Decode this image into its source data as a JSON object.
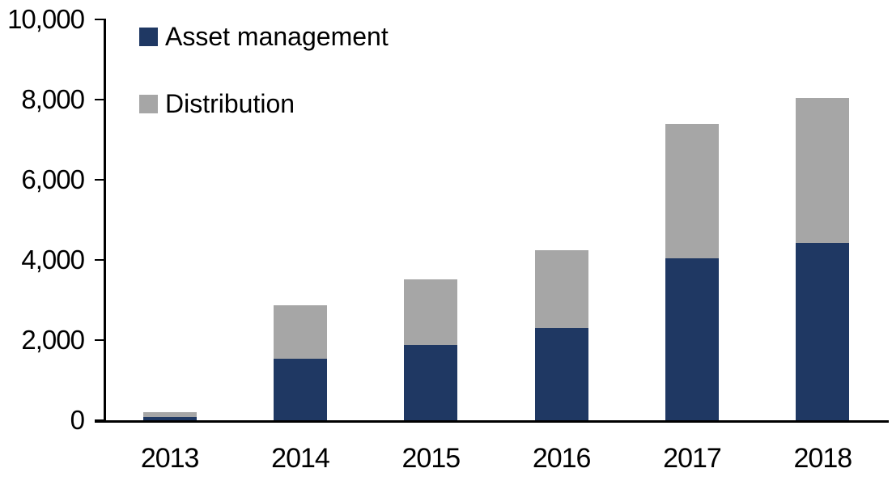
{
  "chart_data": {
    "type": "bar",
    "stacked": true,
    "title": "",
    "xlabel": "",
    "ylabel": "",
    "categories": [
      "2013",
      "2014",
      "2015",
      "2016",
      "2017",
      "2018"
    ],
    "series": [
      {
        "name": "Asset management",
        "color": "#1F3863",
        "values": [
          80,
          1540,
          1870,
          2300,
          4040,
          4420
        ]
      },
      {
        "name": "Distribution",
        "color": "#A6A6A6",
        "values": [
          120,
          1320,
          1650,
          1950,
          3360,
          3620
        ]
      }
    ],
    "ylim": [
      0,
      10000
    ],
    "yticks": [
      0,
      2000,
      4000,
      6000,
      8000,
      10000
    ],
    "ytick_labels": [
      "0",
      "2,000",
      "4,000",
      "6,000",
      "8,000",
      "10,000"
    ],
    "grid": false,
    "legend_position": "top-left"
  },
  "colors": {
    "axis": "#000000",
    "background": "#FFFFFF",
    "text": "#000000"
  }
}
